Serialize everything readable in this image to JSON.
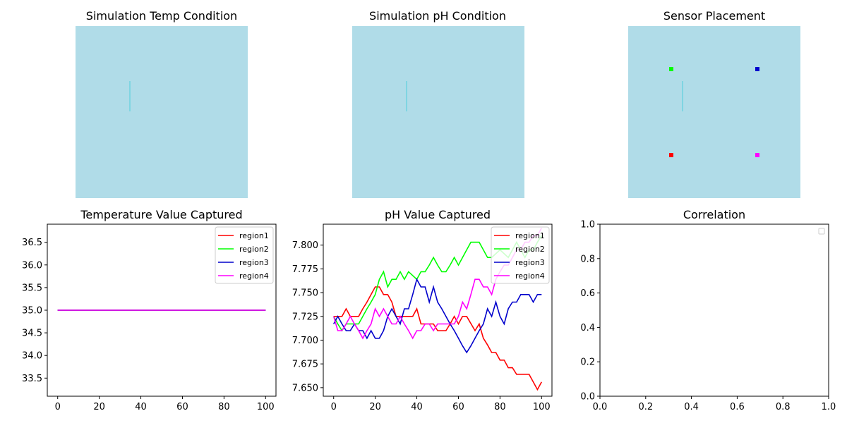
{
  "colors": {
    "region1": "#ff0000",
    "region2": "#00ff00",
    "region3": "#0000cc",
    "region4": "#ff00ff",
    "field": "#b0dce8",
    "barrier": "#6fd3e0"
  },
  "chart_data": [
    {
      "type": "heatmap",
      "title": "Simulation Temp Condition",
      "grid": false,
      "axes": "off"
    },
    {
      "type": "heatmap",
      "title": "Simulation pH Condition",
      "grid": false,
      "axes": "off"
    },
    {
      "type": "scatter",
      "title": "Sensor Placement",
      "axes": "off",
      "points": [
        {
          "name": "region2",
          "x": 25,
          "y": 25
        },
        {
          "name": "region3",
          "x": 75,
          "y": 25
        },
        {
          "name": "region1",
          "x": 25,
          "y": 75
        },
        {
          "name": "region4",
          "x": 75,
          "y": 75
        }
      ],
      "xlim": [
        0,
        100
      ],
      "ylim": [
        0,
        100
      ]
    },
    {
      "type": "line",
      "title": "Temperature Value Captured",
      "xlim": [
        -5,
        105
      ],
      "ylim": [
        33.1,
        36.9
      ],
      "xticks": [
        "0",
        "20",
        "40",
        "60",
        "80",
        "100"
      ],
      "yticks": [
        "33.5",
        "34.0",
        "34.5",
        "35.0",
        "35.5",
        "36.0",
        "36.5"
      ],
      "legend": "top-right",
      "series": [
        {
          "name": "region1",
          "x": [
            0,
            100
          ],
          "y": [
            35.0,
            35.0
          ]
        },
        {
          "name": "region2",
          "x": [
            0,
            100
          ],
          "y": [
            35.0,
            35.0
          ]
        },
        {
          "name": "region3",
          "x": [
            0,
            100
          ],
          "y": [
            35.0,
            35.0
          ]
        },
        {
          "name": "region4",
          "x": [
            0,
            100
          ],
          "y": [
            35.0,
            35.0
          ]
        }
      ]
    },
    {
      "type": "line",
      "title": "pH Value Captured",
      "xlim": [
        -5,
        105
      ],
      "ylim": [
        7.641,
        7.822
      ],
      "xticks": [
        "0",
        "20",
        "40",
        "60",
        "80",
        "100"
      ],
      "yticks": [
        "7.650",
        "7.675",
        "7.700",
        "7.725",
        "7.750",
        "7.775",
        "7.800"
      ],
      "legend": "top-right",
      "series": [
        {
          "name": "region1",
          "x": [
            0,
            4,
            6,
            8,
            12,
            14,
            16,
            18,
            20,
            22,
            24,
            26,
            28,
            30,
            34,
            38,
            40,
            42,
            48,
            50,
            54,
            56,
            58,
            60,
            62,
            64,
            68,
            70,
            72,
            74,
            76,
            78,
            80,
            82,
            84,
            86,
            88,
            92,
            94,
            96,
            98,
            100
          ],
          "y": [
            7.725,
            7.725,
            7.733,
            7.725,
            7.725,
            7.733,
            7.74,
            7.748,
            7.756,
            7.756,
            7.748,
            7.748,
            7.74,
            7.725,
            7.725,
            7.725,
            7.733,
            7.717,
            7.717,
            7.71,
            7.71,
            7.717,
            7.725,
            7.717,
            7.725,
            7.725,
            7.71,
            7.717,
            7.702,
            7.695,
            7.687,
            7.687,
            7.679,
            7.679,
            7.671,
            7.671,
            7.664,
            7.664,
            7.664,
            7.656,
            7.648,
            7.656
          ]
        },
        {
          "name": "region2",
          "x": [
            0,
            2,
            4,
            6,
            8,
            10,
            12,
            14,
            16,
            18,
            20,
            22,
            24,
            26,
            28,
            30,
            32,
            34,
            36,
            40,
            42,
            44,
            46,
            48,
            50,
            52,
            54,
            56,
            58,
            60,
            62,
            64,
            66,
            68,
            70,
            72,
            74,
            76,
            80,
            84,
            86,
            88,
            92,
            94,
            96,
            98,
            100
          ],
          "y": [
            7.725,
            7.717,
            7.71,
            7.717,
            7.717,
            7.717,
            7.717,
            7.725,
            7.733,
            7.74,
            7.748,
            7.764,
            7.772,
            7.756,
            7.764,
            7.764,
            7.772,
            7.764,
            7.772,
            7.764,
            7.772,
            7.772,
            7.779,
            7.787,
            7.779,
            7.772,
            7.772,
            7.779,
            7.787,
            7.779,
            7.787,
            7.795,
            7.803,
            7.803,
            7.803,
            7.795,
            7.787,
            7.787,
            7.795,
            7.787,
            7.795,
            7.803,
            7.787,
            7.795,
            7.795,
            7.803,
            7.81
          ]
        },
        {
          "name": "region3",
          "x": [
            0,
            2,
            4,
            6,
            8,
            10,
            12,
            14,
            16,
            18,
            20,
            22,
            24,
            26,
            28,
            30,
            32,
            34,
            36,
            38,
            40,
            42,
            44,
            46,
            48,
            50,
            52,
            54,
            56,
            58,
            60,
            62,
            64,
            66,
            68,
            70,
            72,
            74,
            76,
            78,
            80,
            82,
            84,
            86,
            88,
            90,
            92,
            94,
            96,
            98,
            100
          ],
          "y": [
            7.717,
            7.725,
            7.717,
            7.71,
            7.71,
            7.717,
            7.71,
            7.71,
            7.702,
            7.71,
            7.702,
            7.702,
            7.71,
            7.725,
            7.733,
            7.725,
            7.717,
            7.733,
            7.733,
            7.748,
            7.764,
            7.756,
            7.756,
            7.74,
            7.756,
            7.74,
            7.733,
            7.725,
            7.717,
            7.71,
            7.702,
            7.694,
            7.687,
            7.694,
            7.702,
            7.71,
            7.717,
            7.733,
            7.725,
            7.74,
            7.725,
            7.717,
            7.733,
            7.74,
            7.74,
            7.748,
            7.748,
            7.748,
            7.74,
            7.748,
            7.748
          ]
        },
        {
          "name": "region4",
          "x": [
            0,
            2,
            4,
            6,
            8,
            10,
            12,
            14,
            16,
            18,
            20,
            22,
            24,
            26,
            28,
            30,
            32,
            34,
            36,
            38,
            40,
            42,
            44,
            46,
            48,
            50,
            52,
            54,
            56,
            58,
            60,
            62,
            64,
            66,
            68,
            70,
            72,
            74,
            76,
            78,
            80,
            82,
            84,
            86,
            88,
            90,
            92,
            94,
            96,
            98,
            100
          ],
          "y": [
            7.725,
            7.71,
            7.71,
            7.717,
            7.725,
            7.717,
            7.71,
            7.702,
            7.71,
            7.717,
            7.733,
            7.725,
            7.733,
            7.725,
            7.717,
            7.717,
            7.725,
            7.717,
            7.71,
            7.702,
            7.71,
            7.71,
            7.717,
            7.717,
            7.71,
            7.717,
            7.717,
            7.717,
            7.717,
            7.717,
            7.725,
            7.74,
            7.733,
            7.748,
            7.764,
            7.764,
            7.756,
            7.756,
            7.748,
            7.764,
            7.772,
            7.779,
            7.779,
            7.787,
            7.795,
            7.795,
            7.803,
            7.803,
            7.81,
            7.81,
            7.818
          ]
        }
      ]
    },
    {
      "type": "scatter",
      "title": "Correlation",
      "xlim": [
        0,
        1
      ],
      "ylim": [
        0,
        1
      ],
      "xticks": [
        "0.0",
        "0.2",
        "0.4",
        "0.6",
        "0.8",
        "1.0"
      ],
      "yticks": [
        "0.0",
        "0.2",
        "0.4",
        "0.6",
        "0.8",
        "1.0"
      ],
      "legend": "top-right",
      "series": []
    }
  ]
}
